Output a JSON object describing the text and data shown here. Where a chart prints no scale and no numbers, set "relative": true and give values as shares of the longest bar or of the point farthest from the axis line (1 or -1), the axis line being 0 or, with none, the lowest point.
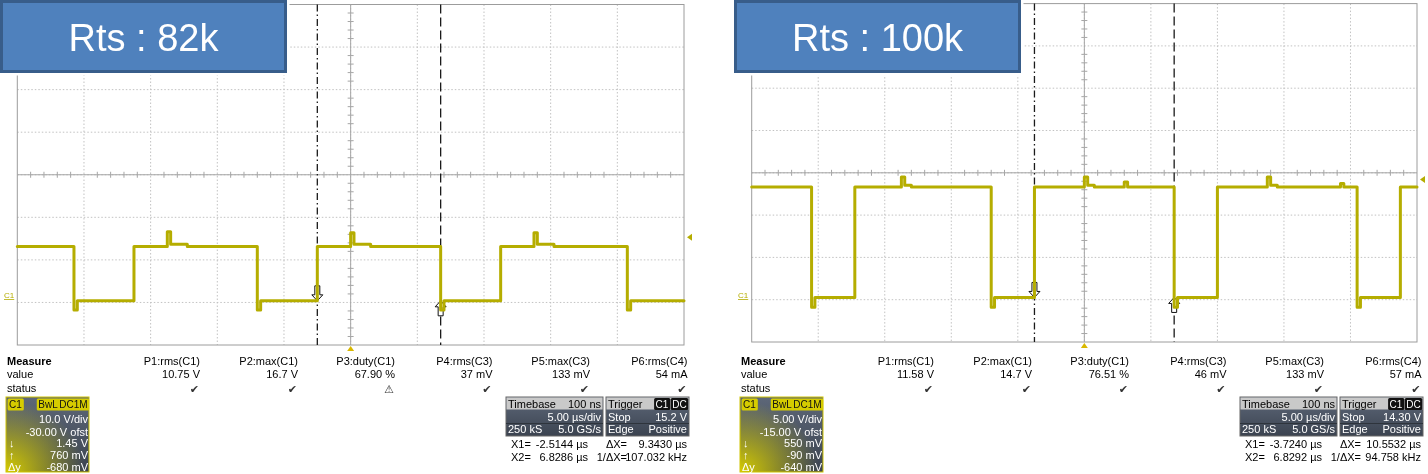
{
  "chart_data": [
    {
      "type": "step",
      "title": "Rts : 82k",
      "relative": true,
      "categories": [
        null,
        null,
        null,
        null,
        null,
        null,
        null,
        null,
        null,
        null,
        null,
        null,
        null,
        null,
        null,
        null,
        null,
        null,
        null,
        null,
        null,
        null,
        null,
        null,
        null,
        null,
        null,
        null,
        null,
        null,
        null,
        null,
        null,
        null,
        null,
        null,
        null,
        null,
        null,
        null,
        null,
        null,
        null,
        null,
        null,
        null,
        null,
        null,
        null,
        null,
        null,
        null,
        null,
        null,
        null,
        null,
        null,
        null,
        null,
        null,
        null,
        null,
        null,
        null,
        null,
        null,
        null,
        null,
        null,
        null,
        null,
        null,
        null,
        null,
        null,
        null,
        null,
        null,
        null,
        null,
        null,
        null,
        null,
        null,
        null,
        null,
        null,
        null,
        null,
        null,
        null,
        null,
        null,
        null,
        null,
        null,
        null,
        null,
        null,
        null,
        null,
        null,
        null,
        null,
        null,
        null,
        null,
        null,
        null,
        null,
        null,
        null,
        null,
        null,
        null,
        null,
        null,
        null,
        null,
        null,
        null,
        null,
        null,
        null,
        null,
        null,
        null,
        null,
        null,
        null,
        null,
        null,
        null,
        null,
        null,
        null,
        null,
        null,
        null,
        null,
        null,
        null,
        null,
        null,
        null,
        null,
        null,
        null,
        null,
        null,
        null,
        null,
        null,
        null,
        null,
        null,
        null,
        null,
        null,
        null,
        null,
        null,
        null,
        null,
        null,
        null,
        null,
        null,
        null,
        null,
        null,
        null,
        null,
        null,
        null,
        null,
        null,
        null,
        null,
        null,
        null,
        null,
        null,
        null,
        null,
        null,
        null,
        null,
        null,
        null,
        null,
        null,
        null,
        null,
        null,
        null,
        null,
        null,
        null,
        null,
        null
      ],
      "series": [
        {
          "color": "#b5ad00",
          "values": [
            0.87,
            0.87,
            0.87,
            0.87,
            0.87,
            0.87,
            0.87,
            0.87,
            0.87,
            0.87,
            0.87,
            0.87,
            0.87,
            0.87,
            0.87,
            0.87,
            0.87,
            0.31,
            0.39,
            0.39,
            0.39,
            0.39,
            0.39,
            0.39,
            0.39,
            0.39,
            0.39,
            0.39,
            0.39,
            0.39,
            0.39,
            0.39,
            0.39,
            0.39,
            0.39,
            0.87,
            0.87,
            0.87,
            0.87,
            0.87,
            0.87,
            0.87,
            0.87,
            0.87,
            0.87,
            1.0,
            0.89,
            0.89,
            0.89,
            0.89,
            0.89,
            0.87,
            0.87,
            0.87,
            0.87,
            0.87,
            0.87,
            0.87,
            0.87,
            0.87,
            0.87,
            0.87,
            0.87,
            0.87,
            0.87,
            0.87,
            0.87,
            0.87,
            0.87,
            0.87,
            0.87,
            0.87,
            0.31,
            0.39,
            0.39,
            0.39,
            0.39,
            0.39,
            0.39,
            0.39,
            0.39,
            0.39,
            0.39,
            0.39,
            0.39,
            0.39,
            0.39,
            0.39,
            0.39,
            0.39,
            0.87,
            0.87,
            0.87,
            0.87,
            0.87,
            0.87,
            0.87,
            0.87,
            0.87,
            0.87,
            0.99,
            0.89,
            0.89,
            0.89,
            0.89,
            0.89,
            0.87,
            0.87,
            0.87,
            0.87,
            0.87,
            0.87,
            0.87,
            0.87,
            0.87,
            0.87,
            0.87,
            0.87,
            0.87,
            0.87,
            0.87,
            0.87,
            0.87,
            0.87,
            0.87,
            0.87,
            0.87,
            0.31,
            0.39,
            0.39,
            0.39,
            0.39,
            0.39,
            0.39,
            0.39,
            0.39,
            0.39,
            0.39,
            0.39,
            0.39,
            0.39,
            0.39,
            0.39,
            0.39,
            0.39,
            0.87,
            0.87,
            0.87,
            0.87,
            0.87,
            0.87,
            0.87,
            0.87,
            0.87,
            0.87,
            0.99,
            0.89,
            0.89,
            0.89,
            0.89,
            0.89,
            0.87,
            0.87,
            0.87,
            0.87,
            0.87,
            0.87,
            0.87,
            0.87,
            0.87,
            0.87,
            0.87,
            0.87,
            0.87,
            0.87,
            0.87,
            0.87,
            0.87,
            0.87,
            0.87,
            0.87,
            0.87,
            0.87,
            0.31,
            0.39,
            0.39,
            0.39,
            0.39,
            0.39,
            0.39,
            0.39,
            0.39,
            0.39,
            0.39,
            0.39,
            0.39,
            0.39,
            0.39,
            0.39,
            0.39,
            0.39
          ]
        }
      ],
      "grid": true,
      "annotations": [
        "Measure",
        "value",
        "status",
        "P1:rms(C1)",
        "P2:max(C1)",
        "P3:duty(C1)",
        "P4:rms(C3)",
        "P5:max(C3)",
        "P6:rms(C4)",
        "10.75 V",
        "16.7 V",
        "67.90 %",
        "37 mV",
        "133 mV",
        "54 mA",
        "✔",
        "✔",
        "⚠",
        "✔",
        "✔",
        "✔",
        "C1",
        "BwL",
        "DC1M",
        "10.0 V/div",
        "-30.00 V ofst",
        "↓",
        "1.45 V",
        "↑",
        "760 mV",
        "Δy",
        "-680 mV",
        "Timebase",
        "100 ns",
        "5.00 µs/div",
        "250 kS",
        "5.0 GS/s",
        "Trigger",
        "C1",
        "DC",
        "Stop",
        "15.2 V",
        "Edge",
        "Positive",
        "X1=",
        "-2.5144 µs",
        "ΔX=",
        "9.3430 µs",
        "X2=",
        "6.8286 µs",
        "1/ΔX=",
        "107.032 kHz",
        "C1"
      ]
    },
    {
      "type": "step",
      "title": "Rts : 100k",
      "relative": true,
      "categories": [
        null,
        null,
        null,
        null,
        null,
        null,
        null,
        null,
        null,
        null,
        null,
        null,
        null,
        null,
        null,
        null,
        null,
        null,
        null,
        null,
        null,
        null,
        null,
        null,
        null,
        null,
        null,
        null,
        null,
        null,
        null,
        null,
        null,
        null,
        null,
        null,
        null,
        null,
        null,
        null,
        null,
        null,
        null,
        null,
        null,
        null,
        null,
        null,
        null,
        null,
        null,
        null,
        null,
        null,
        null,
        null,
        null,
        null,
        null,
        null,
        null,
        null,
        null,
        null,
        null,
        null,
        null,
        null,
        null,
        null,
        null,
        null,
        null,
        null,
        null,
        null,
        null,
        null,
        null,
        null,
        null,
        null,
        null,
        null,
        null,
        null,
        null,
        null,
        null,
        null,
        null,
        null,
        null,
        null,
        null,
        null,
        null,
        null,
        null,
        null,
        null,
        null,
        null,
        null,
        null,
        null,
        null,
        null,
        null,
        null,
        null,
        null,
        null,
        null,
        null,
        null,
        null,
        null,
        null,
        null,
        null,
        null,
        null,
        null,
        null,
        null,
        null,
        null,
        null,
        null,
        null,
        null,
        null,
        null,
        null,
        null,
        null,
        null,
        null,
        null,
        null,
        null,
        null,
        null,
        null,
        null,
        null,
        null,
        null,
        null,
        null,
        null,
        null,
        null,
        null,
        null,
        null,
        null,
        null,
        null,
        null,
        null,
        null,
        null,
        null,
        null,
        null,
        null,
        null,
        null,
        null,
        null,
        null,
        null,
        null,
        null,
        null,
        null,
        null,
        null,
        null,
        null,
        null,
        null,
        null,
        null,
        null,
        null,
        null,
        null,
        null,
        null,
        null,
        null,
        null,
        null,
        null,
        null,
        null,
        null,
        null
      ],
      "series": [
        {
          "color": "#b5ad00",
          "values": [
            0.94,
            0.94,
            0.94,
            0.94,
            0.94,
            0.94,
            0.94,
            0.94,
            0.94,
            0.94,
            0.94,
            0.94,
            0.94,
            0.94,
            0.94,
            0.94,
            0.94,
            0.94,
            0.21,
            0.27,
            0.27,
            0.27,
            0.27,
            0.27,
            0.27,
            0.27,
            0.27,
            0.27,
            0.27,
            0.27,
            0.27,
            0.94,
            0.94,
            0.94,
            0.94,
            0.94,
            0.94,
            0.94,
            0.94,
            0.94,
            0.94,
            0.94,
            0.94,
            0.94,
            0.94,
            1.0,
            0.95,
            0.95,
            0.94,
            0.94,
            0.94,
            0.94,
            0.94,
            0.94,
            0.94,
            0.94,
            0.94,
            0.94,
            0.94,
            0.94,
            0.94,
            0.94,
            0.94,
            0.94,
            0.94,
            0.94,
            0.94,
            0.94,
            0.94,
            0.94,
            0.94,
            0.94,
            0.21,
            0.27,
            0.27,
            0.27,
            0.27,
            0.27,
            0.27,
            0.27,
            0.27,
            0.27,
            0.27,
            0.27,
            0.27,
            0.94,
            0.94,
            0.94,
            0.94,
            0.94,
            0.94,
            0.94,
            0.94,
            0.94,
            0.94,
            0.94,
            0.94,
            0.94,
            0.94,
            0.94,
            1.0,
            0.95,
            0.95,
            0.94,
            0.94,
            0.94,
            0.94,
            0.94,
            0.94,
            0.94,
            0.94,
            0.94,
            0.97,
            0.94,
            0.94,
            0.94,
            0.94,
            0.94,
            0.94,
            0.94,
            0.94,
            0.94,
            0.94,
            0.94,
            0.94,
            0.94,
            0.94,
            0.21,
            0.27,
            0.27,
            0.27,
            0.27,
            0.27,
            0.27,
            0.27,
            0.27,
            0.27,
            0.27,
            0.27,
            0.27,
            0.94,
            0.94,
            0.94,
            0.94,
            0.94,
            0.94,
            0.94,
            0.94,
            0.94,
            0.94,
            0.94,
            0.94,
            0.94,
            0.94,
            0.94,
            1.0,
            0.95,
            0.95,
            0.94,
            0.94,
            0.94,
            0.94,
            0.94,
            0.94,
            0.94,
            0.94,
            0.94,
            0.94,
            0.94,
            0.94,
            0.94,
            0.94,
            0.94,
            0.94,
            0.94,
            0.94,
            0.94,
            0.96,
            0.94,
            0.94,
            0.94,
            0.94,
            0.21,
            0.27,
            0.27,
            0.27,
            0.27,
            0.27,
            0.27,
            0.27,
            0.27,
            0.27,
            0.27,
            0.27,
            0.27,
            0.94,
            0.94,
            0.94,
            0.94,
            0.94,
            0.94
          ]
        }
      ],
      "grid": true,
      "annotations": [
        "Measure",
        "value",
        "status",
        "P1:rms(C1)",
        "P2:max(C1)",
        "P3:duty(C1)",
        "P4:rms(C3)",
        "P5:max(C3)",
        "P6:rms(C4)",
        "11.58 V",
        "14.7 V",
        "76.51 %",
        "46 mV",
        "133 mV",
        "57 mA",
        "✔",
        "✔",
        "✔",
        "✔",
        "✔",
        "✔",
        "C1",
        "BwL",
        "DC1M",
        "5.00 V/div",
        "-15.00 V ofst",
        "↓",
        "550 mV",
        "↑",
        "-90 mV",
        "Δy",
        "-640 mV",
        "Timebase",
        "100 ns",
        "5.00 µs/div",
        "250 kS",
        "5.0 GS/s",
        "Trigger",
        "C1",
        "DC",
        "Stop",
        "14.30 V",
        "Edge",
        "Positive",
        "X1=",
        "-3.7240 µs",
        "ΔX=",
        "10.5532 µs",
        "X2=",
        "6.8292 µs",
        "1/ΔX=",
        "94.758 kHz",
        "C1"
      ]
    }
  ]
}
